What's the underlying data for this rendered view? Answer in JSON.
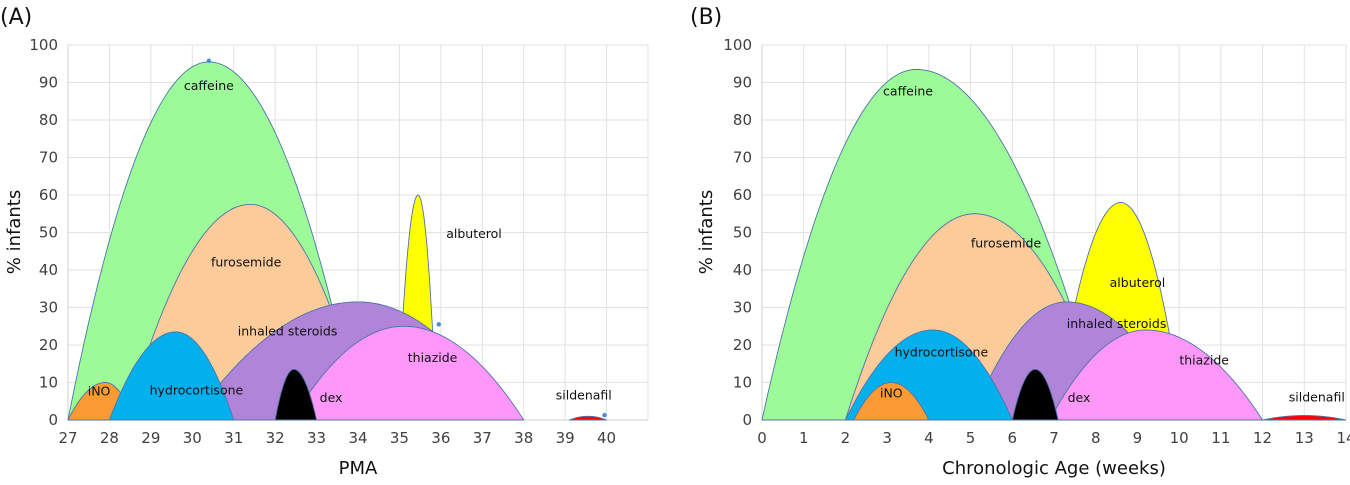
{
  "chart_data": [
    {
      "panel": "(A)",
      "type": "area",
      "xlabel": "PMA",
      "ylabel": "% infants",
      "xlim": [
        27,
        41
      ],
      "ylim": [
        0,
        100
      ],
      "x_ticks": [
        27,
        28,
        29,
        30,
        31,
        32,
        33,
        34,
        35,
        36,
        37,
        38,
        39,
        40
      ],
      "y_ticks": [
        0,
        10,
        20,
        30,
        40,
        50,
        60,
        70,
        80,
        90,
        100
      ],
      "grid": true,
      "legend": "none (inline labels)",
      "series": [
        {
          "name": "caffeine",
          "color": "#9cfb98",
          "start": 27.0,
          "peak_x": 30.4,
          "peak": 95.5,
          "end": 34.0,
          "label_pos": [
            30.4,
            88
          ]
        },
        {
          "name": "furosemide",
          "color": "#fbcb9a",
          "start": 28.4,
          "peak_x": 31.4,
          "peak": 57.5,
          "end": 34.2,
          "label_pos": [
            31.3,
            41
          ]
        },
        {
          "name": "albuterol",
          "color": "#ffff00",
          "start": 34.95,
          "peak_x": 35.45,
          "peak": 60,
          "end": 35.9,
          "label_pos": [
            36.8,
            48.5
          ]
        },
        {
          "name": "inhaled steroids",
          "color": "#b084d8",
          "start": 30.0,
          "peak_x": 34.0,
          "peak": 31.5,
          "end": 37.6,
          "label_pos": [
            32.3,
            22.5
          ]
        },
        {
          "name": "thiazide",
          "color": "#fd98fa",
          "start": 32.4,
          "peak_x": 35.1,
          "peak": 25,
          "end": 38.0,
          "label_pos": [
            35.8,
            15.5
          ]
        },
        {
          "name": "iNO",
          "color": "#fc9a33",
          "start": 27.0,
          "peak_x": 27.9,
          "peak": 10,
          "end": 28.6,
          "label_pos": [
            27.75,
            6.5
          ]
        },
        {
          "name": "hydrocortisone",
          "color": "#02b0ee",
          "start": 28.0,
          "peak_x": 29.6,
          "peak": 23.5,
          "end": 31.0,
          "label_pos": [
            30.1,
            6.8
          ]
        },
        {
          "name": "dex",
          "color": "#000000",
          "start": 32.0,
          "peak_x": 32.45,
          "peak": 13.5,
          "end": 33.0,
          "label_pos": [
            33.35,
            4.8
          ]
        },
        {
          "name": "sildenafil",
          "color": "#ff0000",
          "start": 39.1,
          "peak_x": 39.55,
          "peak": 1,
          "end": 40.0,
          "label_pos": [
            39.45,
            5.5
          ]
        }
      ],
      "markers": [
        {
          "x": 30.4,
          "y": 95.8,
          "color": "#4a8bd8"
        },
        {
          "x": 35.95,
          "y": 25.5,
          "color": "#4a8bd8"
        },
        {
          "x": 39.95,
          "y": 1.3,
          "color": "#4a8bd8"
        }
      ]
    },
    {
      "panel": "(B)",
      "type": "area",
      "xlabel": "Chronologic Age (weeks)",
      "ylabel": "% infants",
      "xlim": [
        0,
        14
      ],
      "ylim": [
        0,
        100
      ],
      "x_ticks": [
        0,
        1,
        2,
        3,
        4,
        5,
        6,
        7,
        8,
        9,
        10,
        11,
        12,
        13,
        14
      ],
      "y_ticks": [
        0,
        10,
        20,
        30,
        40,
        50,
        60,
        70,
        80,
        90,
        100
      ],
      "grid": true,
      "legend": "none (inline labels)",
      "series": [
        {
          "name": "caffeine",
          "color": "#9cfb98",
          "start": 0.0,
          "peak_x": 3.7,
          "peak": 93.5,
          "end": 8.2,
          "label_pos": [
            3.5,
            86.5
          ]
        },
        {
          "name": "furosemide",
          "color": "#fbcb9a",
          "start": 2.0,
          "peak_x": 5.1,
          "peak": 55,
          "end": 8.4,
          "label_pos": [
            5.85,
            46
          ]
        },
        {
          "name": "albuterol",
          "color": "#ffff00",
          "start": 7.0,
          "peak_x": 8.6,
          "peak": 58,
          "end": 10.1,
          "label_pos": [
            9.0,
            35.5
          ]
        },
        {
          "name": "inhaled steroids",
          "color": "#b084d8",
          "start": 5.0,
          "peak_x": 7.3,
          "peak": 31.5,
          "end": 10.2,
          "label_pos": [
            8.5,
            24.5
          ]
        },
        {
          "name": "thiazide",
          "color": "#fd98fa",
          "start": 6.9,
          "peak_x": 9.2,
          "peak": 24,
          "end": 12.0,
          "label_pos": [
            10.6,
            14.8
          ]
        },
        {
          "name": "hydrocortisone",
          "color": "#02b0ee",
          "start": 2.0,
          "peak_x": 4.1,
          "peak": 24,
          "end": 6.0,
          "label_pos": [
            4.3,
            17
          ]
        },
        {
          "name": "iNO",
          "color": "#fc9a33",
          "start": 2.2,
          "peak_x": 3.1,
          "peak": 10,
          "end": 4.0,
          "label_pos": [
            3.1,
            6
          ]
        },
        {
          "name": "dex",
          "color": "#000000",
          "start": 6.0,
          "peak_x": 6.55,
          "peak": 13.5,
          "end": 7.1,
          "label_pos": [
            7.6,
            4.8
          ]
        },
        {
          "name": "sildenafil",
          "color": "#ff0000",
          "start": 12.0,
          "peak_x": 13.0,
          "peak": 1.2,
          "end": 14.0,
          "label_pos": [
            13.3,
            5
          ]
        }
      ],
      "markers": []
    }
  ]
}
